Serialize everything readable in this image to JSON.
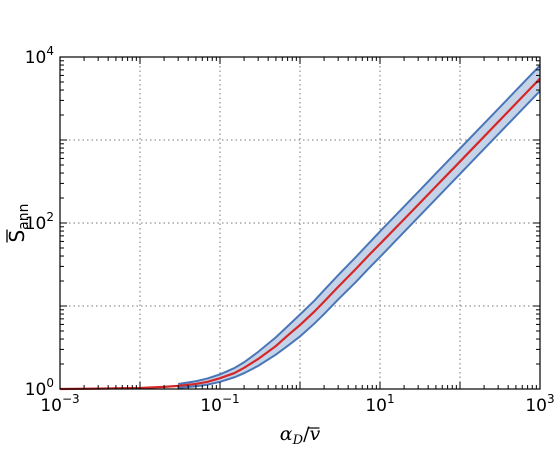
{
  "chart_data": {
    "type": "line",
    "xscale": "log",
    "yscale": "log",
    "xlim": [
      0.001,
      1000
    ],
    "ylim": [
      1,
      10000
    ],
    "grid": true,
    "xlabel": "α_D/v̄",
    "ylabel": "S̄_ann",
    "xticks": [
      {
        "value": 0.001,
        "base": "10",
        "exp": "−3"
      },
      {
        "value": 0.1,
        "base": "10",
        "exp": "−1"
      },
      {
        "value": 10,
        "base": "10",
        "exp": "1"
      },
      {
        "value": 1000,
        "base": "10",
        "exp": "3"
      }
    ],
    "yticks": [
      {
        "value": 1,
        "base": "10",
        "exp": "0"
      },
      {
        "value": 100,
        "base": "10",
        "exp": "2"
      },
      {
        "value": 10000,
        "base": "10",
        "exp": "4"
      }
    ],
    "series": [
      {
        "role": "central",
        "color": "#d62728",
        "x": [
          0.001,
          0.003,
          0.01,
          0.02,
          0.03,
          0.05,
          0.07,
          0.1,
          0.15,
          0.2,
          0.3,
          0.5,
          0.7,
          1,
          1.5,
          2,
          3,
          5,
          7,
          10,
          20,
          30,
          50,
          70,
          100,
          200,
          300,
          500,
          700,
          1000
        ],
        "y": [
          1.0,
          1.01,
          1.03,
          1.06,
          1.09,
          1.15,
          1.22,
          1.35,
          1.55,
          1.8,
          2.3,
          3.3,
          4.4,
          5.9,
          8.5,
          11.3,
          17.0,
          28.0,
          39.5,
          56.0,
          111.0,
          166.0,
          276.0,
          386.0,
          550.0,
          1100.0,
          1650.0,
          2750.0,
          3850.0,
          5500.0
        ]
      }
    ],
    "band": {
      "fill": "#c5d3e8",
      "edge": "#4a76b8",
      "x": [
        0.03,
        0.05,
        0.07,
        0.1,
        0.15,
        0.2,
        0.3,
        0.5,
        0.7,
        1,
        1.5,
        2,
        3,
        5,
        7,
        10,
        20,
        30,
        50,
        70,
        100,
        200,
        300,
        500,
        700,
        1000
      ],
      "lower": [
        1.03,
        1.08,
        1.13,
        1.22,
        1.38,
        1.55,
        1.9,
        2.6,
        3.3,
        4.3,
        6.1,
        8.0,
        12.0,
        19.5,
        27.5,
        39.0,
        78.0,
        117.0,
        195.0,
        273.0,
        390.0,
        780.0,
        1170.0,
        1950.0,
        2730.0,
        3900.0
      ],
      "upper": [
        1.15,
        1.24,
        1.34,
        1.5,
        1.78,
        2.1,
        2.8,
        4.2,
        5.7,
        7.9,
        11.5,
        15.5,
        23.5,
        39.0,
        55.0,
        79.0,
        158.0,
        237.0,
        395.0,
        553.0,
        790.0,
        1580.0,
        2370.0,
        3950.0,
        5530.0,
        7900.0
      ]
    }
  }
}
